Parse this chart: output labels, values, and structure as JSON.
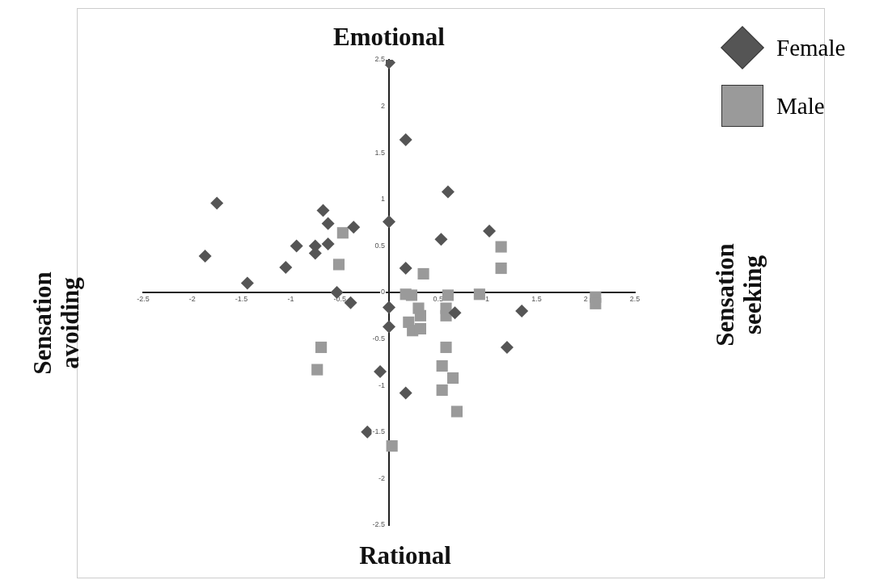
{
  "chart_data": {
    "type": "scatter",
    "title": "Emotional",
    "xlabel": "Rational",
    "ylabel": "Sensation avoiding",
    "y2label": "Sensation seeking",
    "series": [
      {
        "name": "Female",
        "color": "#555555",
        "marker": "diamond",
        "x": [
          -1.75,
          -1.87,
          -1.44,
          -1.05,
          -0.94,
          -0.75,
          -0.75,
          -0.67,
          -0.62,
          -0.62,
          -0.36,
          -0.53,
          -0.39,
          0,
          0,
          0.17,
          0.6,
          0.53,
          1.02,
          0.17,
          0,
          0,
          0.67,
          1.35,
          1.2,
          -0.09,
          0.17,
          -0.22
        ],
        "values": [
          0.96,
          0.39,
          0.1,
          0.27,
          0.5,
          0.5,
          0.42,
          0.88,
          0.74,
          0.52,
          0.7,
          0,
          -0.11,
          0.76,
          2.47,
          1.64,
          1.08,
          0.57,
          0.66,
          0.26,
          -0.16,
          -0.37,
          -0.22,
          -0.2,
          -0.59,
          -0.85,
          -1.08,
          -1.5
        ]
      },
      {
        "name": "Male",
        "color": "#9a9a9a",
        "marker": "square",
        "x": [
          -0.47,
          -0.51,
          0.35,
          0.17,
          0.23,
          0.6,
          0.92,
          1.14,
          1.14,
          2.1,
          2.1,
          0.3,
          0.32,
          0.2,
          0.24,
          0.32,
          0.58,
          0.58,
          0.58,
          0.54,
          0.65,
          0.54,
          0.69,
          -0.69,
          -0.73,
          0.03
        ],
        "values": [
          0.64,
          0.3,
          0.2,
          -0.02,
          -0.03,
          -0.03,
          -0.02,
          0.49,
          0.26,
          -0.05,
          -0.12,
          -0.17,
          -0.25,
          -0.32,
          -0.41,
          -0.39,
          -0.17,
          -0.25,
          -0.59,
          -0.79,
          -0.92,
          -1.05,
          -1.28,
          -0.59,
          -0.83,
          -1.65
        ]
      }
    ],
    "xlim": [
      -2.5,
      2.5
    ],
    "ylim": [
      -2.5,
      2.5
    ],
    "xticks": [
      -2.5,
      -2,
      -1.5,
      -1,
      -0.5,
      0.5,
      1,
      1.5,
      2,
      2.5
    ],
    "yticks": [
      -2.5,
      -2,
      -1.5,
      -1,
      -0.5,
      0,
      0.5,
      1,
      1.5,
      2,
      2.5
    ],
    "grid": false,
    "legend": "top right"
  }
}
